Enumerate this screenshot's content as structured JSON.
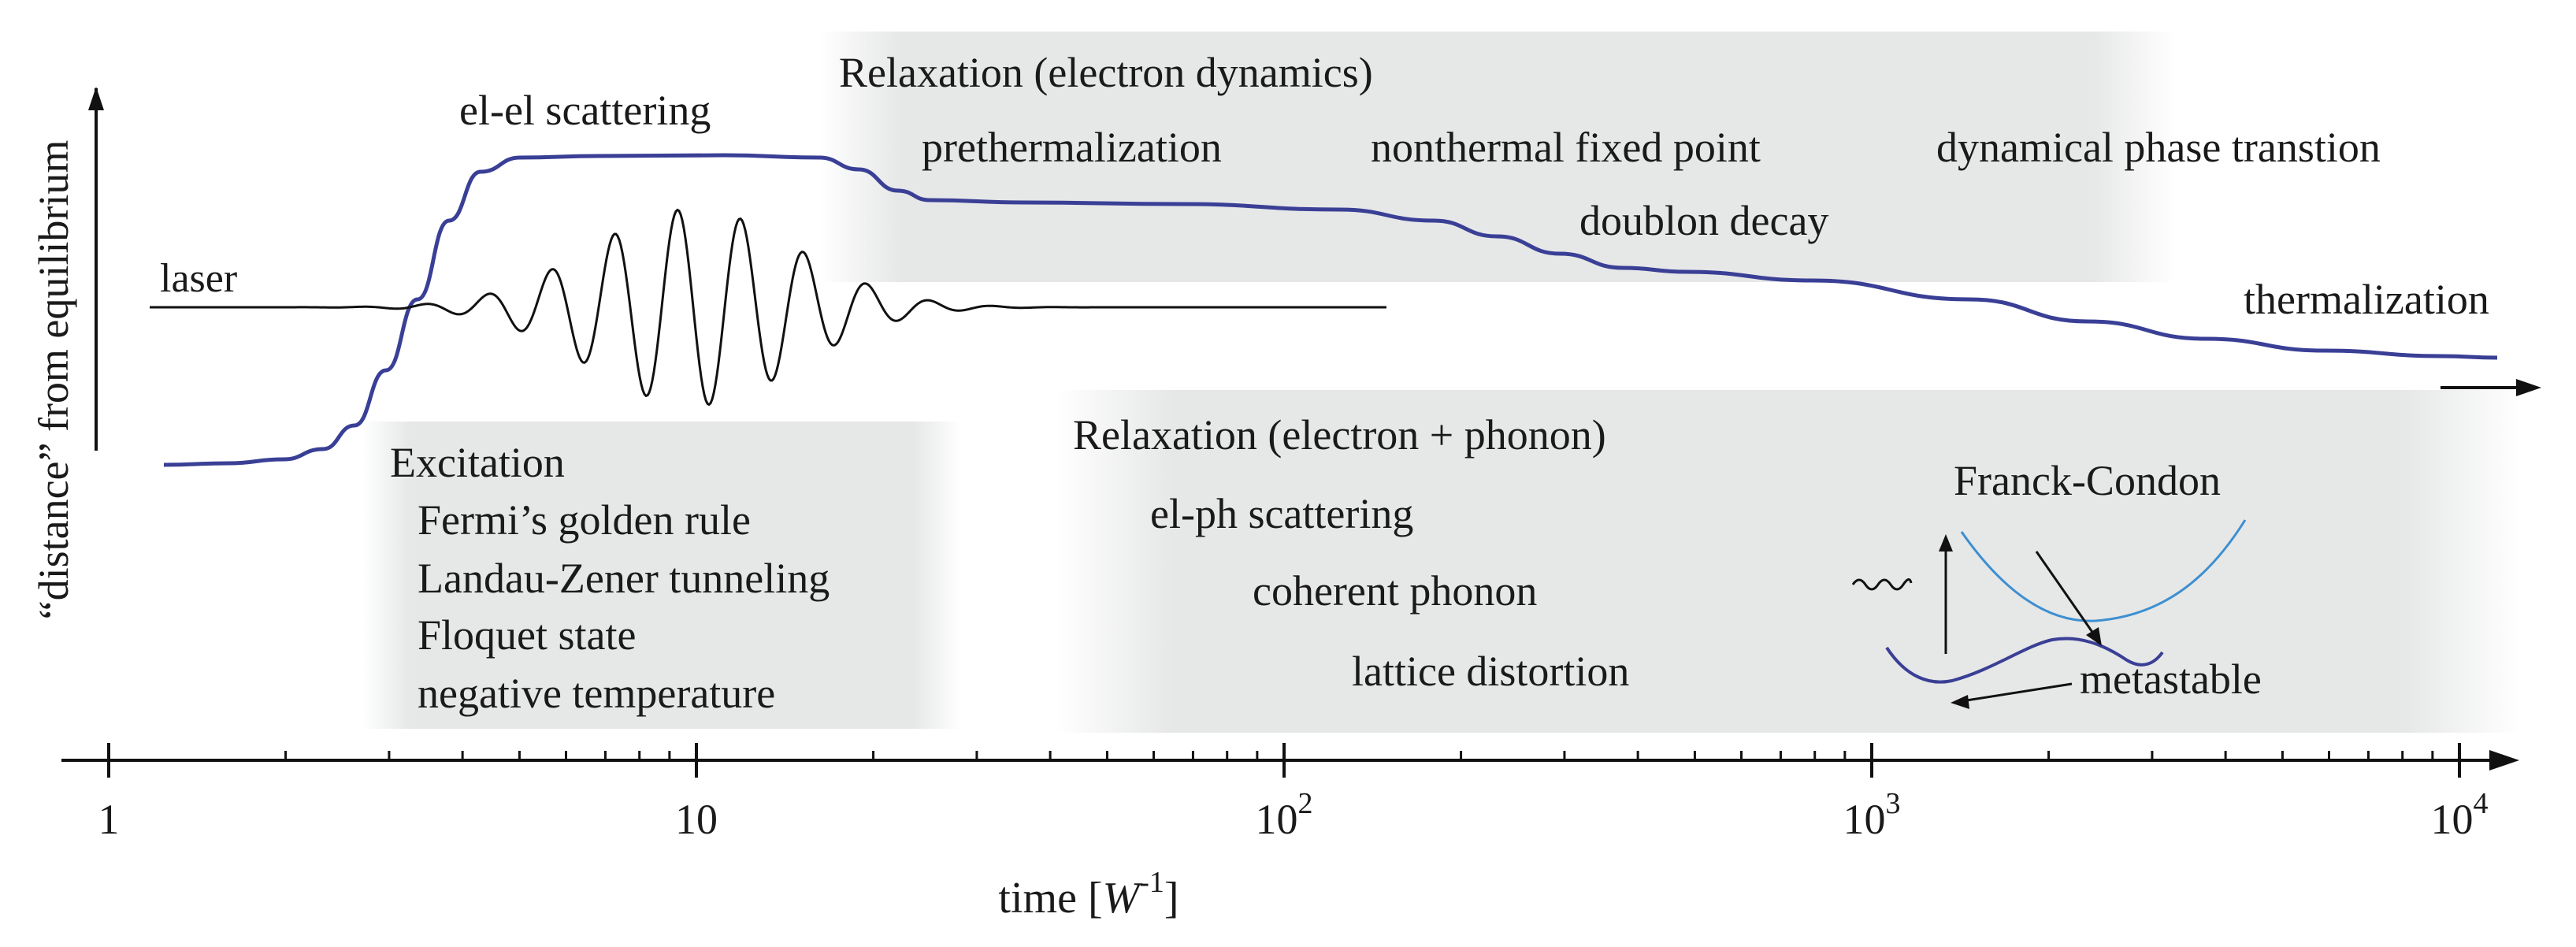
{
  "y_axis_label": "“distance” from equilibrium",
  "x_axis": {
    "label_prefix": "time [",
    "label_var": "W",
    "label_exp": "-1",
    "label_suffix": "]",
    "scale": "log",
    "ticks": [
      {
        "value": 1,
        "base": "1",
        "exp": ""
      },
      {
        "value": 10,
        "base": "10",
        "exp": ""
      },
      {
        "value": 100,
        "base": "10",
        "exp": "2"
      },
      {
        "value": 1000,
        "base": "10",
        "exp": "3"
      },
      {
        "value": 10000,
        "base": "10",
        "exp": "4"
      }
    ]
  },
  "labels": {
    "laser": "laser",
    "el_el": "el-el scattering",
    "relax_e_title": "Relaxation (electron dynamics)",
    "prethermalization": "prethermalization",
    "nonthermal": "nonthermal fixed point",
    "dynamical": "dynamical phase transtion",
    "doublon": "doublon decay",
    "thermalization": "thermalization",
    "excitation_title": "Excitation",
    "fermi": "Fermi’s golden rule",
    "landau": "Landau-Zener tunneling",
    "floquet": "Floquet state",
    "negative": "negative temperature",
    "relax_ep_title": "Relaxation (electron + phonon)",
    "elph": "el-ph scattering",
    "coherent": "coherent phonon",
    "lattice": "lattice distortion",
    "franck": "Franck-Condon",
    "metastable": "metastable"
  },
  "colors": {
    "curve": "#3a3f96",
    "upper_parabola": "#3d8fd1",
    "laser": "#111111",
    "axis": "#111111",
    "shade": "#e6e7e7"
  }
}
